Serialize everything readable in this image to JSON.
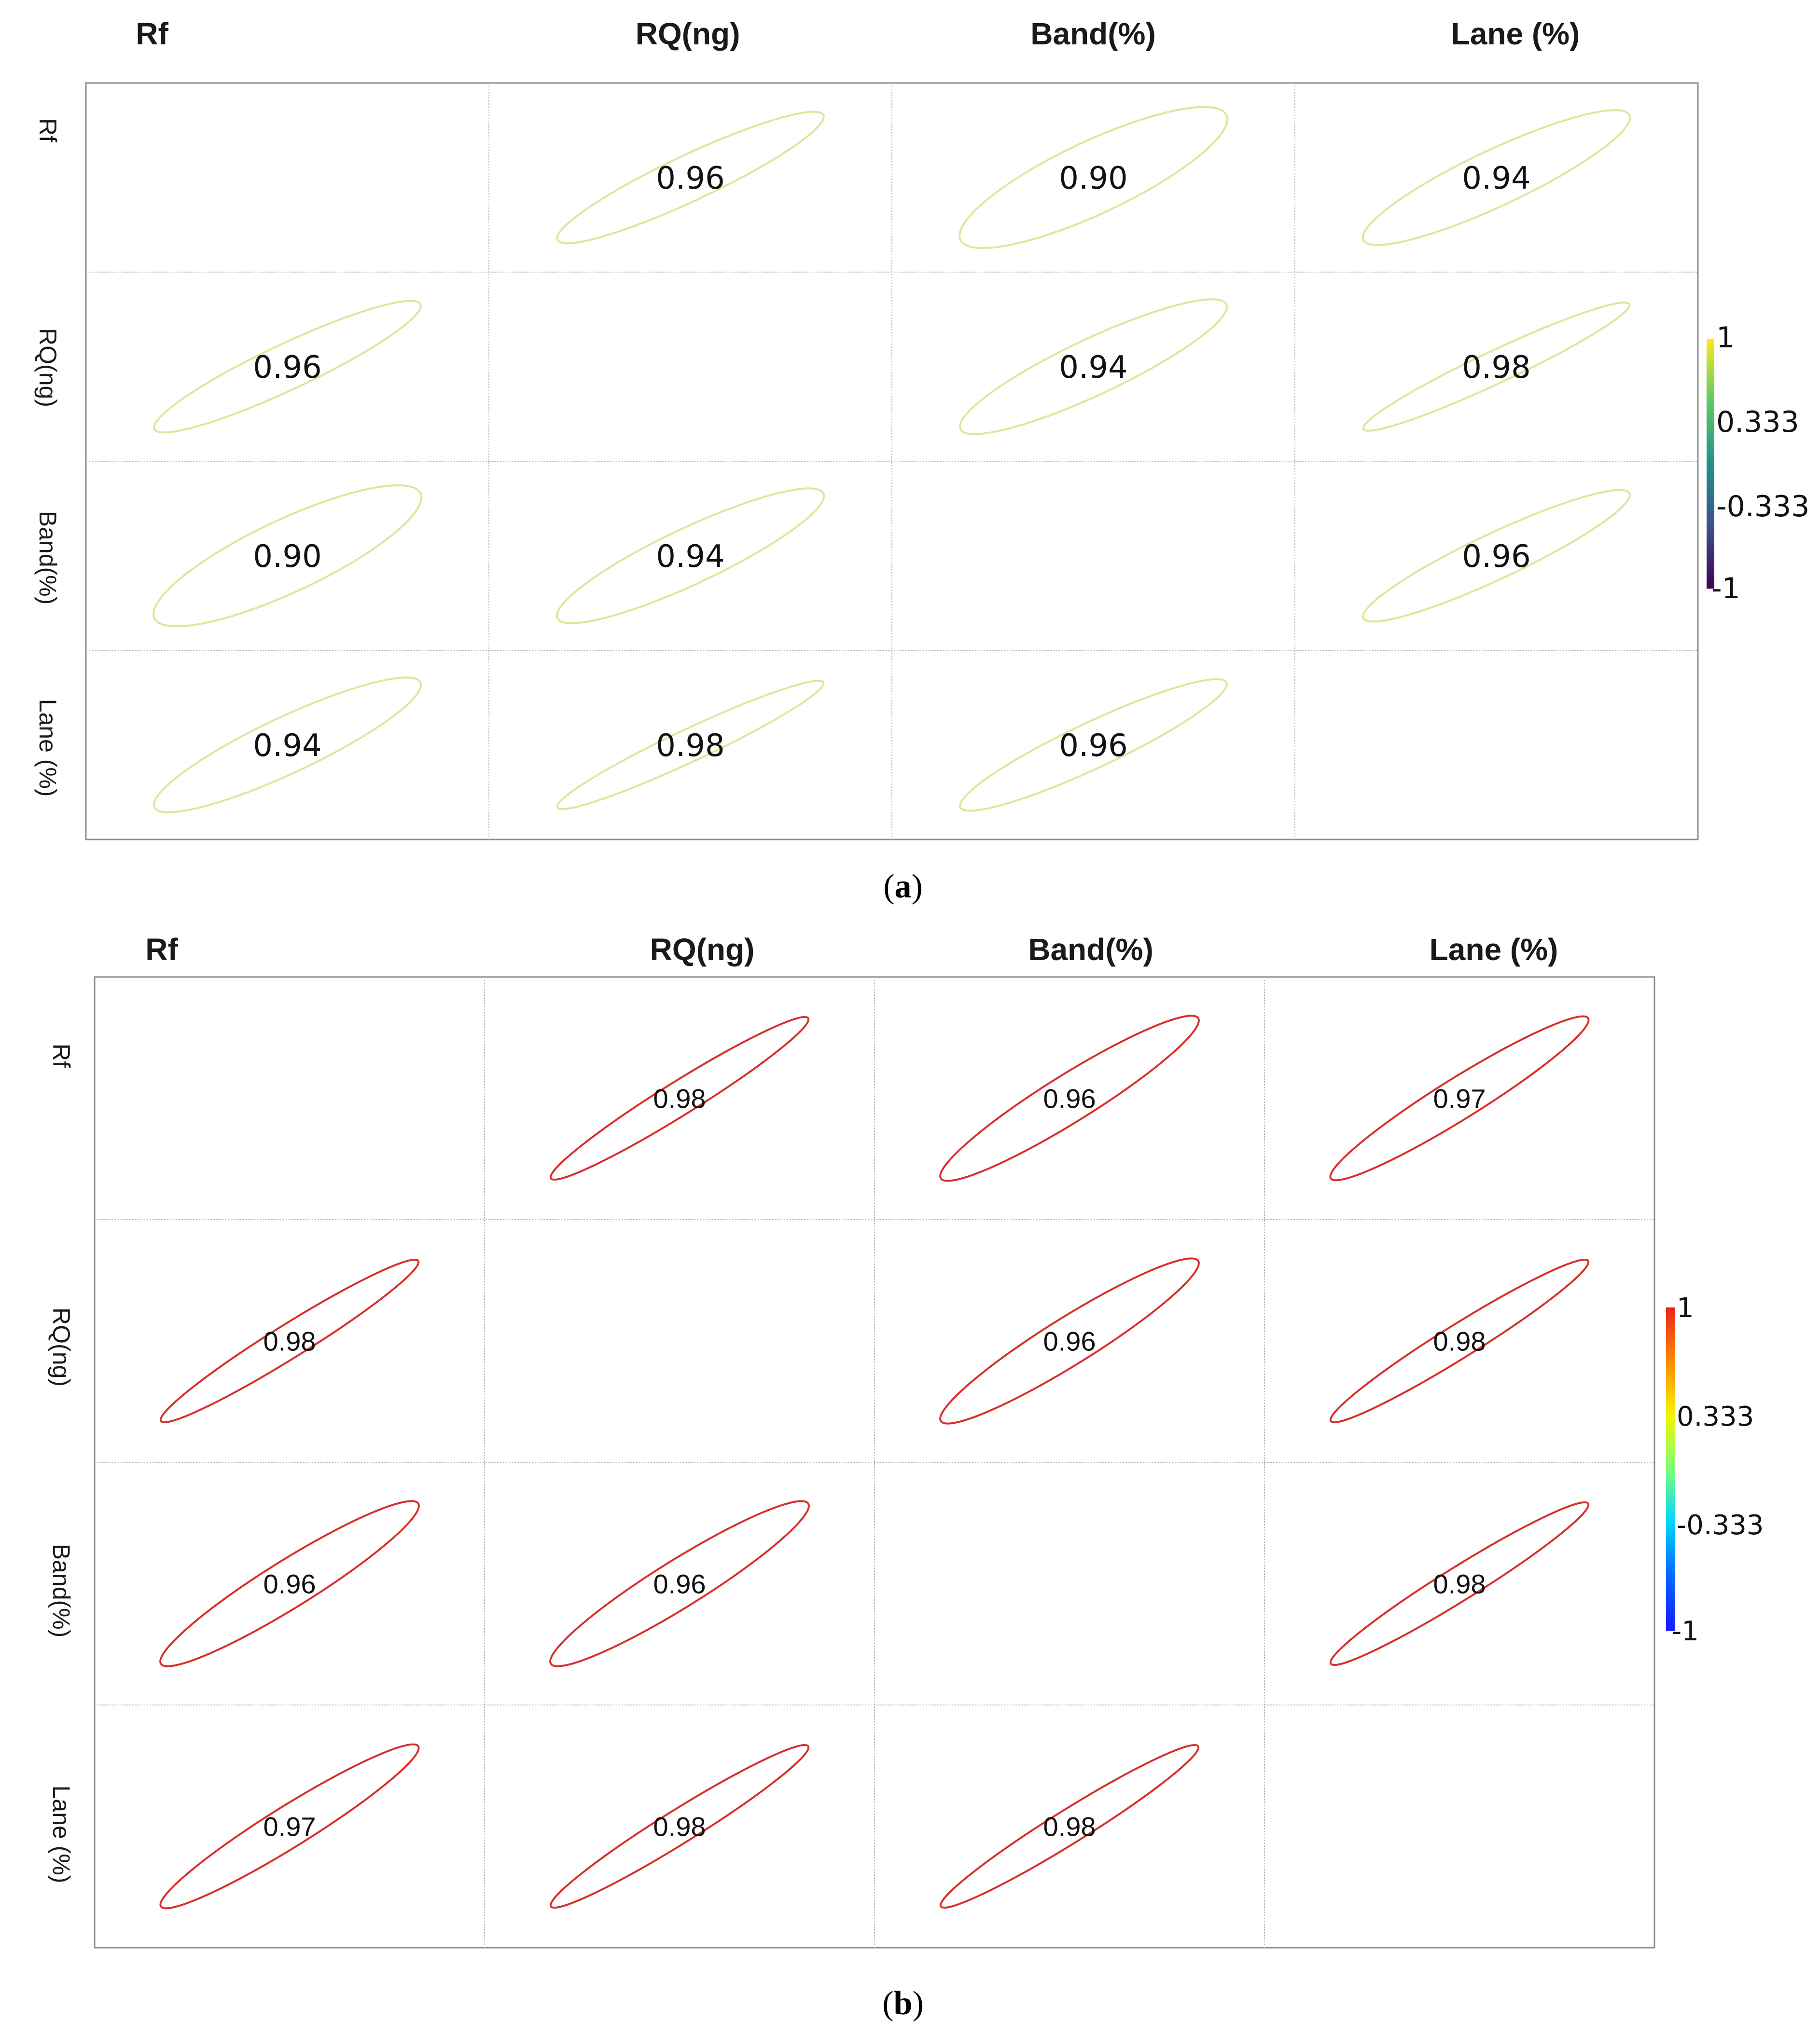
{
  "chart_data": [
    {
      "type": "heatmap",
      "panel_label": "a",
      "variables": [
        "Rf",
        "RQ(ng)",
        "Band(%)",
        "Lane (%)"
      ],
      "column_labels": [
        "Rf",
        "RQ(ng)",
        "Band(%)",
        "Lane (%)"
      ],
      "row_labels": [
        "Rf",
        "RQ(ng)",
        "Band(%)",
        "Lane (%)"
      ],
      "matrix": [
        [
          null,
          0.96,
          0.9,
          0.94
        ],
        [
          0.96,
          null,
          0.94,
          0.98
        ],
        [
          0.9,
          0.94,
          null,
          0.96
        ],
        [
          0.94,
          0.98,
          0.96,
          null
        ]
      ],
      "value_labels": [
        [
          null,
          "0.96",
          "0.90",
          "0.94"
        ],
        [
          null,
          null,
          "0.94",
          "0.98"
        ],
        [
          null,
          null,
          null,
          "0.96"
        ],
        [
          null,
          null,
          null,
          null
        ]
      ],
      "colorbar": {
        "colormap": "viridis",
        "ticks": [
          "1",
          "0.333",
          "-0.333",
          "-1"
        ],
        "range": [
          -1,
          1
        ],
        "colors": [
          "#fde725",
          "#5ec962",
          "#21918c",
          "#3b528b",
          "#440154"
        ]
      },
      "ellipse_color": "#e3e49c"
    },
    {
      "type": "heatmap",
      "panel_label": "b",
      "variables": [
        "Rf",
        "RQ(ng)",
        "Band(%)",
        "Lane (%)"
      ],
      "column_labels": [
        "Rf",
        "RQ(ng)",
        "Band(%)",
        "Lane (%)"
      ],
      "row_labels": [
        "Rf",
        "RQ(ng)",
        "Band(%)",
        "Lane (%)"
      ],
      "matrix": [
        [
          null,
          0.98,
          0.96,
          0.97
        ],
        [
          0.98,
          null,
          0.96,
          0.98
        ],
        [
          0.96,
          0.96,
          null,
          0.98
        ],
        [
          0.97,
          0.98,
          0.98,
          null
        ]
      ],
      "value_labels": [
        [
          null,
          "0.98",
          "0.96",
          "0.97"
        ],
        [
          null,
          null,
          "0.96",
          "0.98"
        ],
        [
          null,
          null,
          null,
          "0.98"
        ],
        [
          null,
          null,
          null,
          null
        ]
      ],
      "colorbar": {
        "colormap": "jet",
        "ticks": [
          "1",
          "0.333",
          "-0.333",
          "-1"
        ],
        "range": [
          -1,
          1
        ],
        "colors": [
          "#e8231c",
          "#ff8a00",
          "#f5f500",
          "#7dff7a",
          "#00d5ff",
          "#0066ff",
          "#1a1aff"
        ]
      },
      "ellipse_color": "#d6302c"
    }
  ],
  "captions": [
    {
      "open": "(",
      "letter": "a",
      "close": ")"
    },
    {
      "open": "(",
      "letter": "b",
      "close": ")"
    }
  ]
}
